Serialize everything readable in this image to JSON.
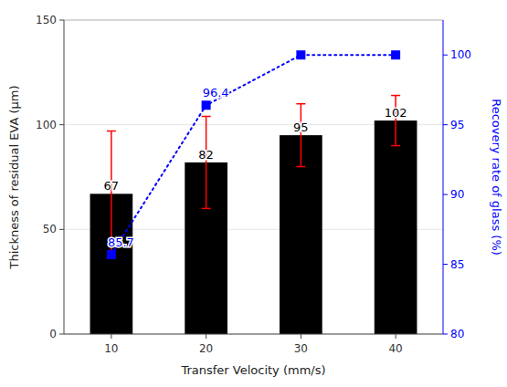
{
  "chart_data": {
    "type": "bar",
    "xlabel": "Transfer Velocity (mm/s)",
    "ylabel": "Thickness of residual EVA (μm)",
    "y2label": "Recovery rate of glass (%)",
    "x": [
      10,
      20,
      30,
      40
    ],
    "xlim": [
      5,
      45
    ],
    "xticks": [
      10,
      20,
      30,
      40
    ],
    "ylim": [
      0,
      150
    ],
    "yticks": [
      0,
      50,
      100,
      150
    ],
    "y2lim": [
      80,
      102.5
    ],
    "y2ticks": [
      80,
      85,
      90,
      95,
      100
    ],
    "series": [
      {
        "type": "bar",
        "color": "#000000",
        "values": [
          67,
          82,
          95,
          102
        ],
        "errors": [
          30,
          22,
          15,
          12
        ],
        "error_color": "#ff0000",
        "data_labels": true
      },
      {
        "type": "line",
        "axis": "y2",
        "color": "#0000ff",
        "marker": "square",
        "line_style": "dotted",
        "values": [
          85.7,
          96.4,
          100.0,
          100.0
        ],
        "value_labels": [
          "85.7",
          "96.4",
          null,
          null
        ],
        "data_labels": true
      }
    ]
  }
}
